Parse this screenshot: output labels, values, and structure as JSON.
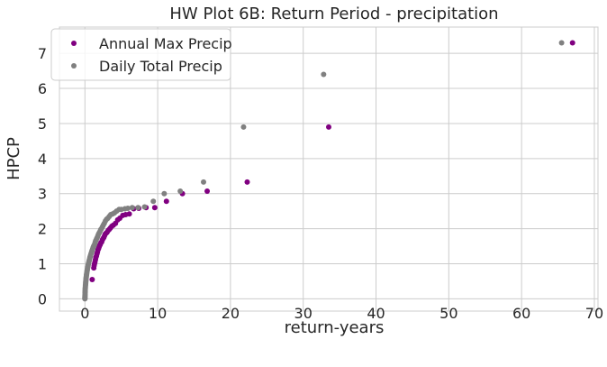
{
  "chart_data": {
    "type": "scatter",
    "title": "HW Plot 6B: Return Period - precipitation",
    "xlabel": "return-years",
    "ylabel": "HPCP",
    "xlim": [
      -3.5,
      70.5
    ],
    "ylim": [
      -0.35,
      7.75
    ],
    "xticks": [
      0,
      10,
      20,
      30,
      40,
      50,
      60,
      70
    ],
    "yticks": [
      0,
      1,
      2,
      3,
      4,
      5,
      6,
      7
    ],
    "grid": true,
    "legend": "top-left",
    "series": [
      {
        "name": "Annual Max Precip",
        "color": "#800080",
        "points": [
          [
            67.0,
            7.3
          ],
          [
            33.5,
            4.9
          ],
          [
            22.3,
            3.33
          ],
          [
            16.8,
            3.07
          ],
          [
            13.4,
            3.0
          ],
          [
            11.2,
            2.78
          ],
          [
            9.6,
            2.6
          ],
          [
            8.4,
            2.6
          ],
          [
            7.4,
            2.58
          ],
          [
            6.7,
            2.57
          ],
          [
            6.1,
            2.42
          ],
          [
            5.6,
            2.4
          ],
          [
            5.2,
            2.38
          ],
          [
            4.8,
            2.3
          ],
          [
            4.5,
            2.25
          ],
          [
            4.2,
            2.15
          ],
          [
            3.9,
            2.1
          ],
          [
            3.7,
            2.07
          ],
          [
            3.5,
            2.02
          ],
          [
            3.35,
            1.98
          ],
          [
            3.2,
            1.95
          ],
          [
            3.05,
            1.9
          ],
          [
            2.9,
            1.87
          ],
          [
            2.8,
            1.85
          ],
          [
            2.7,
            1.8
          ],
          [
            2.6,
            1.75
          ],
          [
            2.5,
            1.72
          ],
          [
            2.4,
            1.68
          ],
          [
            2.3,
            1.62
          ],
          [
            2.2,
            1.6
          ],
          [
            2.1,
            1.55
          ],
          [
            2.03,
            1.52
          ],
          [
            1.95,
            1.48
          ],
          [
            1.87,
            1.43
          ],
          [
            1.8,
            1.4
          ],
          [
            1.72,
            1.33
          ],
          [
            1.65,
            1.28
          ],
          [
            1.58,
            1.22
          ],
          [
            1.5,
            1.18
          ],
          [
            1.45,
            1.12
          ],
          [
            1.38,
            1.05
          ],
          [
            1.32,
            1.0
          ],
          [
            1.27,
            0.95
          ],
          [
            1.22,
            0.88
          ],
          [
            1.0,
            0.55
          ]
        ]
      },
      {
        "name": "Daily Total Precip",
        "color": "#808080",
        "points": [
          [
            65.5,
            7.3
          ],
          [
            32.8,
            6.4
          ],
          [
            21.8,
            4.9
          ],
          [
            16.3,
            3.33
          ],
          [
            13.1,
            3.07
          ],
          [
            10.9,
            3.0
          ],
          [
            9.4,
            2.78
          ],
          [
            8.2,
            2.62
          ],
          [
            7.3,
            2.6
          ],
          [
            6.5,
            2.6
          ],
          [
            5.9,
            2.58
          ],
          [
            5.5,
            2.57
          ],
          [
            5.0,
            2.55
          ],
          [
            4.7,
            2.55
          ],
          [
            4.35,
            2.5
          ],
          [
            4.05,
            2.45
          ],
          [
            3.8,
            2.42
          ],
          [
            3.55,
            2.4
          ],
          [
            3.35,
            2.35
          ],
          [
            3.15,
            2.3
          ],
          [
            2.98,
            2.27
          ],
          [
            2.82,
            2.22
          ],
          [
            2.66,
            2.15
          ],
          [
            2.52,
            2.1
          ],
          [
            2.4,
            2.05
          ],
          [
            2.28,
            2.0
          ],
          [
            2.17,
            1.97
          ],
          [
            2.07,
            1.92
          ],
          [
            1.97,
            1.88
          ],
          [
            1.88,
            1.85
          ],
          [
            1.79,
            1.8
          ],
          [
            1.7,
            1.75
          ],
          [
            1.62,
            1.72
          ],
          [
            1.55,
            1.68
          ],
          [
            1.47,
            1.65
          ],
          [
            1.4,
            1.6
          ],
          [
            1.33,
            1.55
          ],
          [
            1.26,
            1.52
          ],
          [
            1.2,
            1.5
          ],
          [
            1.14,
            1.47
          ],
          [
            1.08,
            1.43
          ],
          [
            1.03,
            1.4
          ],
          [
            0.97,
            1.37
          ],
          [
            0.92,
            1.33
          ],
          [
            0.87,
            1.3
          ],
          [
            0.82,
            1.27
          ],
          [
            0.77,
            1.23
          ],
          [
            0.72,
            1.2
          ],
          [
            0.68,
            1.17
          ],
          [
            0.64,
            1.13
          ],
          [
            0.6,
            1.1
          ],
          [
            0.56,
            1.07
          ],
          [
            0.52,
            1.03
          ],
          [
            0.48,
            1.0
          ],
          [
            0.45,
            0.97
          ],
          [
            0.42,
            0.93
          ],
          [
            0.39,
            0.9
          ],
          [
            0.36,
            0.87
          ],
          [
            0.33,
            0.83
          ],
          [
            0.3,
            0.8
          ],
          [
            0.28,
            0.77
          ],
          [
            0.25,
            0.73
          ],
          [
            0.23,
            0.7
          ],
          [
            0.21,
            0.67
          ],
          [
            0.19,
            0.63
          ],
          [
            0.17,
            0.6
          ],
          [
            0.15,
            0.57
          ],
          [
            0.14,
            0.53
          ],
          [
            0.12,
            0.5
          ],
          [
            0.11,
            0.47
          ],
          [
            0.1,
            0.43
          ],
          [
            0.08,
            0.4
          ],
          [
            0.07,
            0.37
          ],
          [
            0.06,
            0.33
          ],
          [
            0.05,
            0.3
          ],
          [
            0.04,
            0.27
          ],
          [
            0.03,
            0.23
          ],
          [
            0.03,
            0.2
          ],
          [
            0.02,
            0.17
          ],
          [
            0.02,
            0.13
          ],
          [
            0.01,
            0.1
          ],
          [
            0.01,
            0.07
          ],
          [
            0.0,
            0.04
          ],
          [
            0.0,
            0.02
          ],
          [
            0.0,
            0.0
          ]
        ]
      }
    ]
  }
}
